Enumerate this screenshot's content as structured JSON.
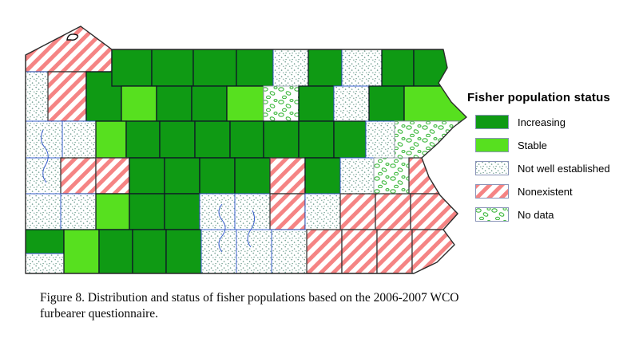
{
  "legend": {
    "title": "Fisher population status",
    "swatch_border": "#8a94b8",
    "items": [
      {
        "label": "Increasing",
        "status": "I"
      },
      {
        "label": "Stable",
        "status": "S"
      },
      {
        "label": "Not well established",
        "status": "N"
      },
      {
        "label": "Nonexistent",
        "status": "X"
      },
      {
        "label": "No data",
        "status": "D"
      }
    ]
  },
  "caption": "Figure 8. Distribution and status of fisher populations based on the 2006-2007 WCO furbearer questionnaire.",
  "map": {
    "status_styles": {
      "I": {
        "fill_type": "solid",
        "color": "#0f9a14",
        "stroke": "#101826"
      },
      "S": {
        "fill_type": "solid",
        "color": "#57e01f",
        "stroke": "#101826"
      },
      "N": {
        "fill_type": "dots",
        "color": "#6f9e8f",
        "stroke": "#3a5fcd"
      },
      "X": {
        "fill_type": "stripes",
        "color": "#f58484",
        "stroke": "#3a3a3a"
      },
      "D": {
        "fill_type": "rings",
        "color": "#3cb83c",
        "stroke": "#9aa4b0"
      }
    },
    "counties": [
      [
        4,
        0,
        108,
        62,
        "X"
      ],
      [
        4,
        62,
        28,
        62,
        "N"
      ],
      [
        32,
        62,
        48,
        62,
        "X"
      ],
      [
        80,
        62,
        44,
        62,
        "I"
      ],
      [
        112,
        34,
        50,
        46,
        "I"
      ],
      [
        162,
        34,
        52,
        46,
        "I"
      ],
      [
        214,
        34,
        54,
        46,
        "I"
      ],
      [
        268,
        34,
        46,
        46,
        "I"
      ],
      [
        314,
        34,
        44,
        46,
        "N"
      ],
      [
        358,
        34,
        42,
        46,
        "I"
      ],
      [
        400,
        34,
        50,
        46,
        "N"
      ],
      [
        450,
        34,
        40,
        46,
        "I"
      ],
      [
        490,
        34,
        68,
        46,
        "I"
      ],
      [
        124,
        80,
        44,
        44,
        "S"
      ],
      [
        168,
        80,
        44,
        44,
        "I"
      ],
      [
        212,
        80,
        44,
        44,
        "I"
      ],
      [
        256,
        80,
        46,
        44,
        "S"
      ],
      [
        302,
        80,
        44,
        44,
        "D"
      ],
      [
        346,
        80,
        44,
        44,
        "I"
      ],
      [
        390,
        80,
        44,
        44,
        "N"
      ],
      [
        434,
        80,
        44,
        44,
        "I"
      ],
      [
        478,
        80,
        80,
        44,
        "S"
      ],
      [
        4,
        124,
        46,
        46,
        "N"
      ],
      [
        50,
        124,
        42,
        46,
        "N"
      ],
      [
        92,
        124,
        38,
        46,
        "S"
      ],
      [
        130,
        124,
        42,
        46,
        "I"
      ],
      [
        172,
        124,
        44,
        46,
        "I"
      ],
      [
        216,
        124,
        44,
        46,
        "I"
      ],
      [
        260,
        124,
        42,
        46,
        "I"
      ],
      [
        302,
        124,
        44,
        46,
        "I"
      ],
      [
        346,
        124,
        44,
        46,
        "I"
      ],
      [
        390,
        124,
        40,
        46,
        "I"
      ],
      [
        430,
        124,
        36,
        46,
        "N"
      ],
      [
        466,
        124,
        92,
        46,
        "D"
      ],
      [
        4,
        170,
        44,
        45,
        "N"
      ],
      [
        48,
        170,
        44,
        45,
        "X"
      ],
      [
        92,
        170,
        42,
        45,
        "X"
      ],
      [
        134,
        170,
        44,
        45,
        "I"
      ],
      [
        178,
        170,
        44,
        45,
        "I"
      ],
      [
        222,
        170,
        44,
        45,
        "I"
      ],
      [
        266,
        170,
        44,
        45,
        "I"
      ],
      [
        310,
        170,
        44,
        45,
        "X"
      ],
      [
        354,
        170,
        44,
        45,
        "I"
      ],
      [
        398,
        170,
        42,
        45,
        "N"
      ],
      [
        440,
        170,
        44,
        45,
        "D"
      ],
      [
        484,
        170,
        74,
        45,
        "X"
      ],
      [
        4,
        215,
        44,
        45,
        "N"
      ],
      [
        48,
        215,
        44,
        45,
        "N"
      ],
      [
        92,
        215,
        42,
        45,
        "S"
      ],
      [
        134,
        215,
        44,
        45,
        "I"
      ],
      [
        178,
        215,
        44,
        45,
        "I"
      ],
      [
        222,
        215,
        44,
        45,
        "N"
      ],
      [
        266,
        215,
        44,
        45,
        "N"
      ],
      [
        310,
        215,
        44,
        45,
        "X"
      ],
      [
        354,
        215,
        44,
        45,
        "N"
      ],
      [
        398,
        215,
        44,
        45,
        "X"
      ],
      [
        442,
        215,
        44,
        45,
        "X"
      ],
      [
        486,
        215,
        72,
        45,
        "X"
      ],
      [
        4,
        260,
        48,
        30,
        "I"
      ],
      [
        4,
        290,
        48,
        25,
        "N"
      ],
      [
        52,
        260,
        44,
        55,
        "S"
      ],
      [
        96,
        260,
        42,
        55,
        "I"
      ],
      [
        138,
        260,
        42,
        55,
        "I"
      ],
      [
        180,
        260,
        44,
        55,
        "I"
      ],
      [
        224,
        260,
        44,
        55,
        "N"
      ],
      [
        268,
        260,
        44,
        55,
        "N"
      ],
      [
        312,
        260,
        44,
        55,
        "N"
      ],
      [
        356,
        260,
        44,
        55,
        "X"
      ],
      [
        400,
        260,
        44,
        55,
        "X"
      ],
      [
        444,
        260,
        44,
        55,
        "X"
      ],
      [
        488,
        260,
        70,
        55,
        "X"
      ]
    ]
  }
}
